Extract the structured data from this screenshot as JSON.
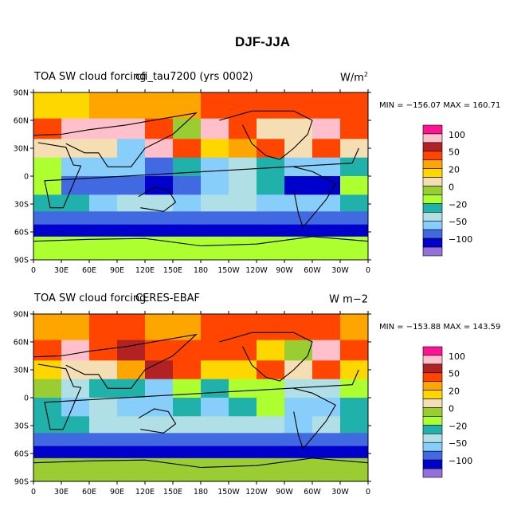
{
  "title": "DJF-JJA",
  "axes": {
    "lat_ticks": [
      "90N",
      "60N",
      "30N",
      "0",
      "30S",
      "60S",
      "90S"
    ],
    "lon_ticks": [
      "0",
      "30E",
      "60E",
      "90E",
      "120E",
      "150E",
      "180",
      "150W",
      "120W",
      "90W",
      "60W",
      "30W",
      "0"
    ]
  },
  "panels": [
    {
      "left_title": "TOA SW cloud forcing",
      "center_title": "cfi_tau7200 (yrs 0002)",
      "units": "W/m",
      "units_sup": "2",
      "minmax": "MIN = −156.07 MAX = 160.71",
      "colorbar_labels": [
        "100",
        "50",
        "20",
        "0",
        "−20",
        "−50",
        "−100"
      ]
    },
    {
      "left_title": "TOA SW cloud forcing",
      "center_title": "CERES-EBAF",
      "units": "W m−2",
      "units_sup": "",
      "minmax": "MIN = −153.88 MAX = 143.59",
      "colorbar_labels": [
        "100",
        "50",
        "20",
        "0",
        "−20",
        "−50",
        "−100"
      ]
    }
  ],
  "colors": [
    "#ff1493",
    "#ffc0cb",
    "#b22222",
    "#ff4500",
    "#ffa500",
    "#ffd700",
    "#f5deb3",
    "#9acd32",
    "#adff2f",
    "#20b2aa",
    "#b0e0e6",
    "#87cefa",
    "#4169e1",
    "#0000cd",
    "#9370db"
  ],
  "chart_data": [
    {
      "type": "heatmap",
      "title": "TOA SW cloud forcing",
      "model": "cfi_tau7200 (yrs 0002)",
      "units": "W/m^2",
      "min": -156.07,
      "max": 160.71,
      "x_range": [
        0,
        360
      ],
      "y_range": [
        -90,
        90
      ],
      "contour_levels": [
        100,
        50,
        20,
        0,
        -20,
        -50,
        -100
      ],
      "rows": [
        {
          "lat": 75,
          "values": [
            20,
            20,
            40,
            30,
            30,
            40,
            50,
            60,
            50,
            50,
            60,
            50
          ]
        },
        {
          "lat": 50,
          "values": [
            50,
            120,
            100,
            100,
            50,
            0,
            100,
            50,
            10,
            10,
            120,
            50
          ]
        },
        {
          "lat": 30,
          "values": [
            15,
            10,
            10,
            -50,
            100,
            50,
            20,
            30,
            50,
            10,
            50,
            15
          ]
        },
        {
          "lat": 10,
          "values": [
            -10,
            -40,
            -50,
            -40,
            -60,
            -20,
            -50,
            -30,
            -20,
            -40,
            -50,
            -20
          ]
        },
        {
          "lat": -10,
          "values": [
            -10,
            -60,
            -60,
            -60,
            -80,
            -60,
            -40,
            -30,
            -20,
            -80,
            -80,
            -10
          ]
        },
        {
          "lat": -30,
          "values": [
            -20,
            -20,
            -40,
            -30,
            -30,
            -40,
            -30,
            -30,
            -40,
            -50,
            -40,
            -20
          ]
        },
        {
          "lat": -45,
          "values": [
            -60,
            -60,
            -60,
            -60,
            -60,
            -60,
            -60,
            -60,
            -60,
            -60,
            -60,
            -60
          ]
        },
        {
          "lat": -57,
          "values": [
            -100,
            -100,
            -100,
            -100,
            -100,
            -100,
            -100,
            -100,
            -100,
            -100,
            -100,
            -100
          ]
        },
        {
          "lat": -80,
          "values": [
            -10,
            -10,
            -10,
            -10,
            -10,
            -10,
            -10,
            -10,
            -10,
            -10,
            -10,
            -10
          ]
        }
      ]
    },
    {
      "type": "heatmap",
      "title": "TOA SW cloud forcing",
      "model": "CERES-EBAF",
      "units": "W m-2",
      "min": -153.88,
      "max": 143.59,
      "x_range": [
        0,
        360
      ],
      "y_range": [
        -90,
        90
      ],
      "contour_levels": [
        100,
        50,
        20,
        0,
        -20,
        -50,
        -100
      ],
      "rows": [
        {
          "lat": 75,
          "values": [
            30,
            30,
            60,
            50,
            40,
            40,
            50,
            60,
            60,
            60,
            50,
            40
          ]
        },
        {
          "lat": 50,
          "values": [
            60,
            100,
            50,
            80,
            60,
            50,
            60,
            50,
            20,
            0,
            100,
            60
          ]
        },
        {
          "lat": 30,
          "values": [
            20,
            10,
            10,
            30,
            70,
            60,
            20,
            20,
            50,
            10,
            50,
            20
          ]
        },
        {
          "lat": 10,
          "values": [
            0,
            -30,
            -20,
            -20,
            -40,
            -10,
            -20,
            -10,
            -10,
            -30,
            -30,
            -10
          ]
        },
        {
          "lat": -10,
          "values": [
            -20,
            -50,
            -30,
            -40,
            -50,
            -20,
            -40,
            -20,
            -10,
            -50,
            -40,
            -20
          ]
        },
        {
          "lat": -30,
          "values": [
            -20,
            -20,
            -30,
            -30,
            -30,
            -30,
            -30,
            -30,
            -30,
            -40,
            -30,
            -20
          ]
        },
        {
          "lat": -45,
          "values": [
            -60,
            -60,
            -60,
            -60,
            -60,
            -60,
            -60,
            -60,
            -60,
            -60,
            -60,
            -60
          ]
        },
        {
          "lat": -57,
          "values": [
            -100,
            -100,
            -100,
            -100,
            -100,
            -100,
            -100,
            -100,
            -100,
            -100,
            -100,
            -100
          ]
        },
        {
          "lat": -80,
          "values": [
            0,
            0,
            0,
            0,
            0,
            0,
            0,
            0,
            0,
            0,
            0,
            0
          ]
        }
      ]
    }
  ]
}
